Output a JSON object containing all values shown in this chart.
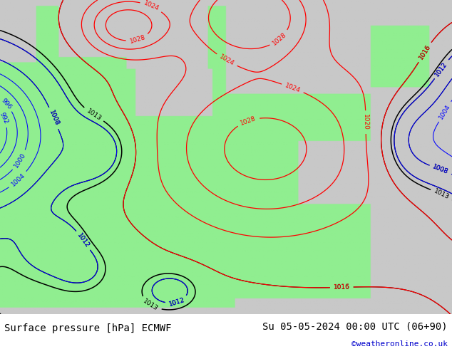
{
  "title_left": "Surface pressure [hPa] ECMWF",
  "title_right": "Su 05-05-2024 00:00 UTC (06+90)",
  "credit": "©weatheronline.co.uk",
  "fig_width": 6.34,
  "fig_height": 4.9,
  "dpi": 100,
  "bg_color": "#c8c8c8",
  "land_color": "#90EE90",
  "sea_color": "#c8c8c8",
  "bottom_bar_color": "#ffffff",
  "title_fontsize": 10,
  "credit_fontsize": 8,
  "credit_color": "#0000cc"
}
